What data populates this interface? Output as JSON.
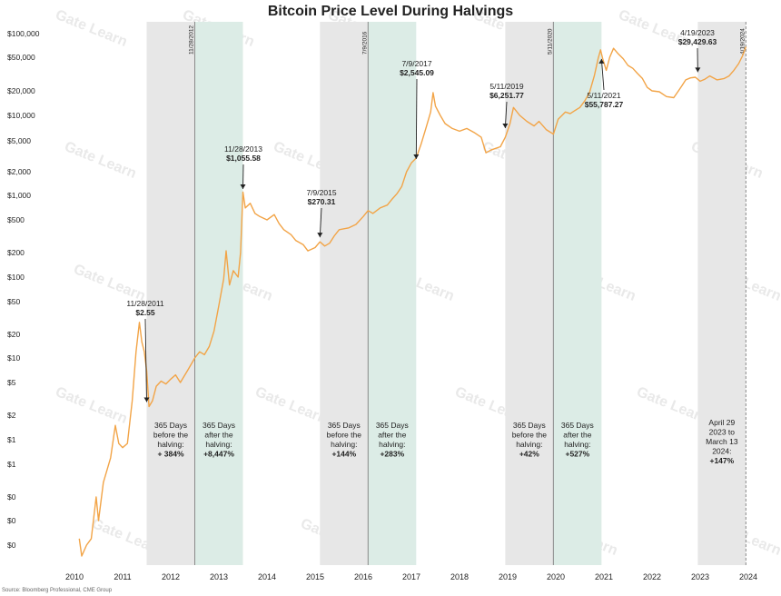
{
  "chart_data": {
    "type": "line",
    "title": "Bitcoin Price Level During Halvings",
    "source": "Source: Bloomberg Professional, CME Group",
    "watermark": "Gate Learn",
    "y_scale": "log",
    "y_ticks": [
      {
        "v": 100000,
        "label": "$100,000"
      },
      {
        "v": 50000,
        "label": "$50,000"
      },
      {
        "v": 20000,
        "label": "$20,000"
      },
      {
        "v": 10000,
        "label": "$10,000"
      },
      {
        "v": 5000,
        "label": "$5,000"
      },
      {
        "v": 2000,
        "label": "$2,000"
      },
      {
        "v": 1000,
        "label": "$1,000"
      },
      {
        "v": 500,
        "label": "$500"
      },
      {
        "v": 200,
        "label": "$200"
      },
      {
        "v": 100,
        "label": "$100"
      },
      {
        "v": 50,
        "label": "$50"
      },
      {
        "v": 20,
        "label": "$20"
      },
      {
        "v": 10,
        "label": "$10"
      },
      {
        "v": 5,
        "label": "$5"
      },
      {
        "v": 2,
        "label": "$2"
      },
      {
        "v": 1,
        "label": "$1"
      },
      {
        "v": 0.5,
        "label": "$1"
      },
      {
        "v": 0.2,
        "label": "$0"
      },
      {
        "v": 0.1,
        "label": "$0"
      },
      {
        "v": 0.05,
        "label": "$0"
      }
    ],
    "x_ticks": [
      "2010",
      "2011",
      "2012",
      "2013",
      "2014",
      "2015",
      "2016",
      "2017",
      "2018",
      "2019",
      "2020",
      "2021",
      "2022",
      "2023",
      "2024"
    ],
    "x_tick_values": [
      2010,
      2011,
      2012,
      2013,
      2014,
      2015,
      2016,
      2017,
      2018,
      2019,
      2020,
      2021,
      2022,
      2023,
      2024
    ],
    "shaded_periods": [
      {
        "kind": "before",
        "start": 2011.5,
        "end": 2012.5,
        "text": [
          "365 Days",
          "before the",
          "halving:"
        ],
        "value": "+ 384%"
      },
      {
        "kind": "after",
        "start": 2012.5,
        "end": 2013.5,
        "text": [
          "365 Days",
          "after the",
          "halving:"
        ],
        "value": "+8,447%"
      },
      {
        "kind": "before",
        "start": 2015.1,
        "end": 2016.1,
        "text": [
          "365 Days",
          "before the",
          "halving:"
        ],
        "value": "+144%"
      },
      {
        "kind": "after",
        "start": 2016.1,
        "end": 2017.1,
        "text": [
          "365 Days",
          "after the",
          "halving:"
        ],
        "value": "+283%"
      },
      {
        "kind": "before",
        "start": 2018.95,
        "end": 2019.95,
        "text": [
          "365 Days",
          "before the",
          "halving:"
        ],
        "value": "+42%"
      },
      {
        "kind": "after",
        "start": 2019.95,
        "end": 2020.95,
        "text": [
          "365 Days",
          "after the",
          "halving:"
        ],
        "value": "+527%"
      },
      {
        "kind": "before",
        "start": 2022.95,
        "end": 2023.95,
        "text": [
          "April 29",
          "2023 to",
          "March 13",
          "2024:"
        ],
        "value": "+147%"
      }
    ],
    "halving_lines": [
      {
        "x": 2012.5,
        "label": "11/28/2012",
        "dashed": false
      },
      {
        "x": 2016.1,
        "label": "7/9/2016",
        "dashed": false
      },
      {
        "x": 2019.95,
        "label": "5/11/2020",
        "dashed": false
      },
      {
        "x": 2023.95,
        "label": "4/19/2024",
        "dashed": true
      }
    ],
    "annotations": [
      {
        "date": "11/28/2011",
        "price": "$2.55",
        "x": 2011.5,
        "y": 2.55
      },
      {
        "date": "11/28/2013",
        "price": "$1,055.58",
        "x": 2013.5,
        "y": 1055.58
      },
      {
        "date": "7/9/2015",
        "price": "$270.31",
        "x": 2015.1,
        "y": 270.31
      },
      {
        "date": "7/9/2017",
        "price": "$2,545.09",
        "x": 2017.1,
        "y": 2545.09
      },
      {
        "date": "5/11/2019",
        "price": "$6,251.77",
        "x": 2018.95,
        "y": 6251.77
      },
      {
        "date": "5/11/2021",
        "price": "$55,787.27",
        "x": 2020.95,
        "y": 55787.27
      },
      {
        "date": "4/19/2023",
        "price": "$29,429.63",
        "x": 2022.95,
        "y": 29429.63
      }
    ],
    "series": [
      {
        "color": "#f2a447",
        "points": [
          [
            2010.1,
            0.06
          ],
          [
            2010.15,
            0.04
          ],
          [
            2010.25,
            0.05
          ],
          [
            2010.35,
            0.06
          ],
          [
            2010.45,
            0.2
          ],
          [
            2010.5,
            0.1
          ],
          [
            2010.6,
            0.3
          ],
          [
            2010.75,
            0.6
          ],
          [
            2010.85,
            1.5
          ],
          [
            2010.92,
            0.9
          ],
          [
            2011.0,
            0.8
          ],
          [
            2011.1,
            0.9
          ],
          [
            2011.2,
            3
          ],
          [
            2011.28,
            12
          ],
          [
            2011.35,
            28
          ],
          [
            2011.4,
            16
          ],
          [
            2011.45,
            12
          ],
          [
            2011.5,
            7
          ],
          [
            2011.55,
            2.55
          ],
          [
            2011.62,
            3
          ],
          [
            2011.7,
            4.5
          ],
          [
            2011.8,
            5.2
          ],
          [
            2011.9,
            4.8
          ],
          [
            2012.0,
            5.5
          ],
          [
            2012.1,
            6.2
          ],
          [
            2012.2,
            5
          ],
          [
            2012.35,
            7
          ],
          [
            2012.5,
            10
          ],
          [
            2012.6,
            12
          ],
          [
            2012.7,
            11
          ],
          [
            2012.8,
            14
          ],
          [
            2012.9,
            22
          ],
          [
            2013.0,
            45
          ],
          [
            2013.1,
            95
          ],
          [
            2013.15,
            210
          ],
          [
            2013.22,
            80
          ],
          [
            2013.3,
            120
          ],
          [
            2013.4,
            100
          ],
          [
            2013.45,
            200
          ],
          [
            2013.5,
            1100
          ],
          [
            2013.55,
            700
          ],
          [
            2013.65,
            800
          ],
          [
            2013.75,
            600
          ],
          [
            2013.85,
            550
          ],
          [
            2014.0,
            500
          ],
          [
            2014.15,
            580
          ],
          [
            2014.25,
            450
          ],
          [
            2014.35,
            380
          ],
          [
            2014.5,
            330
          ],
          [
            2014.6,
            280
          ],
          [
            2014.75,
            250
          ],
          [
            2014.85,
            210
          ],
          [
            2015.0,
            230
          ],
          [
            2015.1,
            270
          ],
          [
            2015.2,
            240
          ],
          [
            2015.3,
            260
          ],
          [
            2015.4,
            320
          ],
          [
            2015.5,
            380
          ],
          [
            2015.7,
            400
          ],
          [
            2015.85,
            440
          ],
          [
            2016.0,
            550
          ],
          [
            2016.1,
            650
          ],
          [
            2016.2,
            600
          ],
          [
            2016.35,
            700
          ],
          [
            2016.5,
            760
          ],
          [
            2016.6,
            900
          ],
          [
            2016.7,
            1050
          ],
          [
            2016.8,
            1300
          ],
          [
            2016.9,
            2000
          ],
          [
            2017.0,
            2600
          ],
          [
            2017.1,
            3000
          ],
          [
            2017.2,
            4500
          ],
          [
            2017.3,
            7000
          ],
          [
            2017.4,
            11000
          ],
          [
            2017.45,
            19000
          ],
          [
            2017.5,
            13000
          ],
          [
            2017.6,
            10000
          ],
          [
            2017.7,
            8000
          ],
          [
            2017.85,
            7000
          ],
          [
            2018.0,
            6500
          ],
          [
            2018.15,
            7000
          ],
          [
            2018.3,
            6300
          ],
          [
            2018.45,
            5500
          ],
          [
            2018.55,
            3500
          ],
          [
            2018.65,
            3800
          ],
          [
            2018.75,
            4000
          ],
          [
            2018.85,
            4200
          ],
          [
            2018.95,
            5500
          ],
          [
            2019.05,
            8000
          ],
          [
            2019.12,
            12500
          ],
          [
            2019.25,
            10000
          ],
          [
            2019.4,
            8500
          ],
          [
            2019.55,
            7500
          ],
          [
            2019.65,
            8500
          ],
          [
            2019.8,
            6800
          ],
          [
            2019.95,
            6000
          ],
          [
            2020.05,
            9000
          ],
          [
            2020.2,
            11000
          ],
          [
            2020.3,
            10500
          ],
          [
            2020.4,
            11500
          ],
          [
            2020.5,
            12500
          ],
          [
            2020.6,
            15000
          ],
          [
            2020.7,
            19000
          ],
          [
            2020.8,
            30000
          ],
          [
            2020.88,
            48000
          ],
          [
            2020.93,
            62000
          ],
          [
            2020.98,
            47000
          ],
          [
            2021.05,
            35000
          ],
          [
            2021.12,
            50000
          ],
          [
            2021.2,
            65000
          ],
          [
            2021.3,
            55000
          ],
          [
            2021.4,
            48000
          ],
          [
            2021.5,
            40000
          ],
          [
            2021.6,
            37000
          ],
          [
            2021.7,
            32000
          ],
          [
            2021.8,
            28000
          ],
          [
            2021.9,
            22000
          ],
          [
            2022.0,
            20000
          ],
          [
            2022.15,
            19500
          ],
          [
            2022.3,
            17000
          ],
          [
            2022.45,
            16500
          ],
          [
            2022.55,
            20000
          ],
          [
            2022.62,
            23000
          ],
          [
            2022.7,
            27000
          ],
          [
            2022.8,
            28500
          ],
          [
            2022.9,
            29000
          ],
          [
            2023.0,
            26000
          ],
          [
            2023.1,
            27500
          ],
          [
            2023.2,
            30000
          ],
          [
            2023.35,
            27000
          ],
          [
            2023.5,
            28000
          ],
          [
            2023.6,
            30000
          ],
          [
            2023.7,
            35000
          ],
          [
            2023.8,
            42000
          ],
          [
            2023.88,
            52000
          ],
          [
            2023.95,
            68000
          ]
        ]
      }
    ]
  }
}
